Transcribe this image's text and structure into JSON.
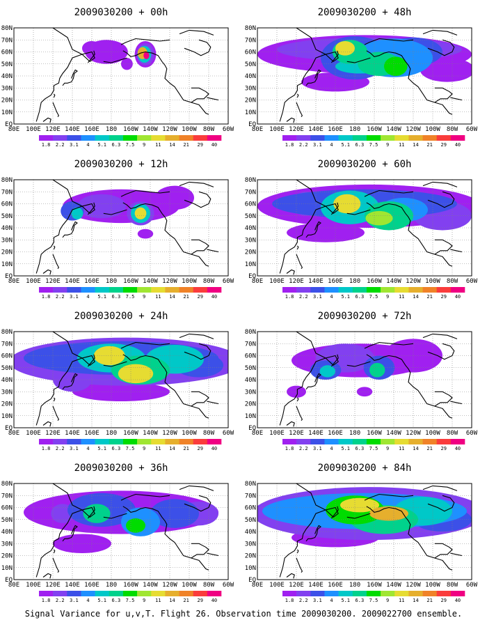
{
  "caption": "Signal Variance for u,v,T. Flight 26. Observation time 2009030200. 2009022700 ensemble.",
  "colors": {
    "scale": [
      "#a020f0",
      "#8240f0",
      "#3c50e8",
      "#1e90ff",
      "#00c8c8",
      "#00d28c",
      "#00dc00",
      "#a0e632",
      "#e6dc32",
      "#e6af2d",
      "#f08228",
      "#fa3c3c",
      "#f00082"
    ],
    "land_outline": "#000000",
    "grid": "#808080",
    "no_signal": "#ffffff"
  },
  "map": {
    "lat_ticks": [
      "80N",
      "70N",
      "60N",
      "50N",
      "40N",
      "30N",
      "20N",
      "10N",
      "EQ"
    ],
    "lon_ticks": [
      "80E",
      "100E",
      "120E",
      "140E",
      "160E",
      "180",
      "160W",
      "140W",
      "120W",
      "100W",
      "80W",
      "60W"
    ]
  },
  "colorbar": {
    "labels": [
      "1.8",
      "2.2",
      "3.1",
      "4",
      "5.1",
      "6.3",
      "7.5",
      "9",
      "11",
      "14",
      "21",
      "29",
      "40"
    ]
  },
  "panels": [
    {
      "title": "2009030200 + 00h",
      "lead_hours": 0
    },
    {
      "title": "2009030200 + 48h",
      "lead_hours": 48
    },
    {
      "title": "2009030200 + 12h",
      "lead_hours": 12
    },
    {
      "title": "2009030200 + 60h",
      "lead_hours": 60
    },
    {
      "title": "2009030200 + 24h",
      "lead_hours": 24
    },
    {
      "title": "2009030200 + 72h",
      "lead_hours": 72
    },
    {
      "title": "2009030200 + 36h",
      "lead_hours": 36
    },
    {
      "title": "2009030200 + 84h",
      "lead_hours": 84
    }
  ]
}
